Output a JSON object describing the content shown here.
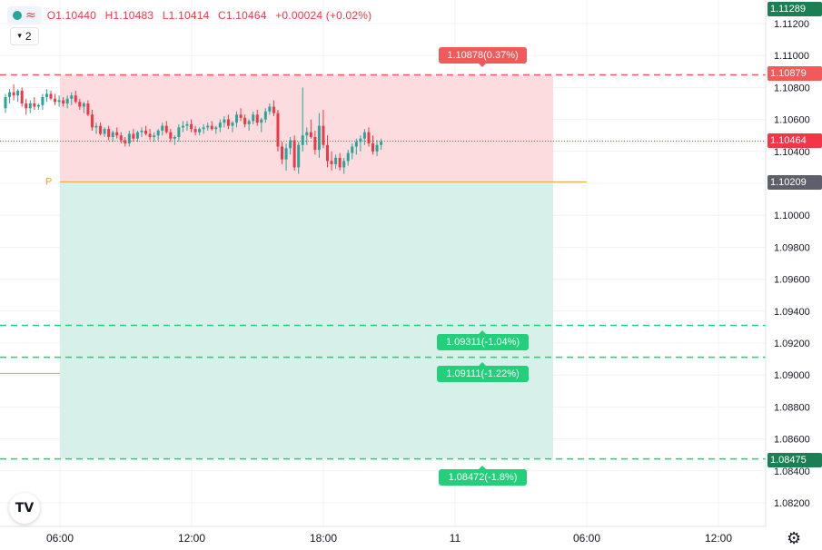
{
  "header": {
    "open": "O1.10440",
    "high": "H1.10483",
    "low": "L1.10414",
    "close": "C1.10464",
    "change": "+0.00024 (+0.02%)",
    "interval": "2"
  },
  "price_axis": {
    "ticks": [
      "1.11200",
      "1.11000",
      "1.10800",
      "1.10600",
      "1.10400",
      "1.10200",
      "1.10000",
      "1.09800",
      "1.09600",
      "1.09400",
      "1.09200",
      "1.09000",
      "1.08800",
      "1.08600",
      "1.08400",
      "1.08200"
    ]
  },
  "time_axis": {
    "ticks": [
      "06:00",
      "12:00",
      "18:00",
      "11",
      "06:00",
      "12:00"
    ]
  },
  "price_labels": {
    "top": "1.11289",
    "stop": "1.10879",
    "current": "1.10464",
    "pivot": "1.10209",
    "target3": "1.08475"
  },
  "position_labels": {
    "stop": "1.10878(0.37%)",
    "target1": "1.09311(-1.04%)",
    "target2": "1.09111(-1.22%)",
    "target3": "1.08472(-1.8%)"
  },
  "pivot_letter": "P",
  "colors": {
    "up": "#26a69a",
    "down": "#f23645",
    "stop_zone": "#fcdcdf",
    "target_zone": "#d7f0ea",
    "green_line": "#22d07a",
    "red_line": "#f05a5a",
    "pivot_line": "#f7a64a"
  },
  "chart_data": {
    "type": "candlestick",
    "x_ticks": [
      "06:00",
      "12:00",
      "18:00",
      "11",
      "06:00",
      "12:00"
    ],
    "y_range": [
      1.081,
      1.113
    ],
    "candles": [
      [
        1.1067,
        1.1076,
        1.1064,
        1.1074
      ],
      [
        1.1074,
        1.1079,
        1.107,
        1.1077
      ],
      [
        1.1077,
        1.1082,
        1.1072,
        1.1075
      ],
      [
        1.1075,
        1.1079,
        1.1071,
        1.1078
      ],
      [
        1.1078,
        1.108,
        1.1068,
        1.107
      ],
      [
        1.107,
        1.1073,
        1.1063,
        1.1067
      ],
      [
        1.1067,
        1.1072,
        1.1064,
        1.107
      ],
      [
        1.107,
        1.1074,
        1.1066,
        1.1068
      ],
      [
        1.1068,
        1.107,
        1.1066,
        1.1069
      ],
      [
        1.1069,
        1.1076,
        1.1066,
        1.1074
      ],
      [
        1.1074,
        1.1079,
        1.1071,
        1.1076
      ],
      [
        1.1076,
        1.1078,
        1.1072,
        1.1073
      ],
      [
        1.1073,
        1.1076,
        1.1069,
        1.1071
      ],
      [
        1.1071,
        1.1075,
        1.1068,
        1.1072
      ],
      [
        1.1072,
        1.1074,
        1.1068,
        1.107
      ],
      [
        1.107,
        1.1075,
        1.1067,
        1.1073
      ],
      [
        1.1073,
        1.1077,
        1.1069,
        1.1075
      ],
      [
        1.1075,
        1.1078,
        1.107,
        1.1071
      ],
      [
        1.1071,
        1.1073,
        1.1066,
        1.1068
      ],
      [
        1.1068,
        1.1071,
        1.1064,
        1.107
      ],
      [
        1.107,
        1.1072,
        1.1062,
        1.1063
      ],
      [
        1.1063,
        1.1066,
        1.1053,
        1.1055
      ],
      [
        1.1055,
        1.1058,
        1.1051,
        1.1056
      ],
      [
        1.1056,
        1.1058,
        1.105,
        1.1051
      ],
      [
        1.1051,
        1.1055,
        1.1049,
        1.1054
      ],
      [
        1.1054,
        1.1056,
        1.1047,
        1.1049
      ],
      [
        1.1049,
        1.1053,
        1.1046,
        1.1052
      ],
      [
        1.1052,
        1.1055,
        1.1048,
        1.105
      ],
      [
        1.105,
        1.1052,
        1.1045,
        1.1047
      ],
      [
        1.1047,
        1.1049,
        1.1043,
        1.1045
      ],
      [
        1.1045,
        1.1053,
        1.1043,
        1.1051
      ],
      [
        1.1051,
        1.1054,
        1.1046,
        1.1048
      ],
      [
        1.1048,
        1.1053,
        1.1046,
        1.1052
      ],
      [
        1.1052,
        1.1055,
        1.1049,
        1.1053
      ],
      [
        1.1053,
        1.1056,
        1.105,
        1.1051
      ],
      [
        1.1051,
        1.1054,
        1.1047,
        1.1049
      ],
      [
        1.1049,
        1.1052,
        1.1046,
        1.105
      ],
      [
        1.105,
        1.1054,
        1.1047,
        1.1053
      ],
      [
        1.1053,
        1.1058,
        1.105,
        1.1056
      ],
      [
        1.1056,
        1.1059,
        1.1051,
        1.1052
      ],
      [
        1.1052,
        1.1054,
        1.1046,
        1.1048
      ],
      [
        1.1048,
        1.105,
        1.1044,
        1.1049
      ],
      [
        1.1049,
        1.1057,
        1.1046,
        1.1055
      ],
      [
        1.1055,
        1.1059,
        1.1052,
        1.1056
      ],
      [
        1.1056,
        1.1059,
        1.1053,
        1.1057
      ],
      [
        1.1057,
        1.106,
        1.1052,
        1.1054
      ],
      [
        1.1054,
        1.1056,
        1.105,
        1.1052
      ],
      [
        1.1052,
        1.1055,
        1.105,
        1.1054
      ],
      [
        1.1054,
        1.1057,
        1.1051,
        1.1055
      ],
      [
        1.1055,
        1.1058,
        1.1053,
        1.1056
      ],
      [
        1.1056,
        1.1059,
        1.1053,
        1.1054
      ],
      [
        1.1054,
        1.1056,
        1.1051,
        1.1055
      ],
      [
        1.1055,
        1.106,
        1.1052,
        1.1058
      ],
      [
        1.1058,
        1.1062,
        1.1055,
        1.106
      ],
      [
        1.106,
        1.1063,
        1.1054,
        1.1056
      ],
      [
        1.1056,
        1.1059,
        1.1052,
        1.1058
      ],
      [
        1.1058,
        1.1065,
        1.1055,
        1.1063
      ],
      [
        1.1063,
        1.1067,
        1.1059,
        1.1061
      ],
      [
        1.1061,
        1.1063,
        1.1055,
        1.1057
      ],
      [
        1.1057,
        1.106,
        1.1053,
        1.1059
      ],
      [
        1.1059,
        1.1065,
        1.1057,
        1.1063
      ],
      [
        1.1063,
        1.1066,
        1.1056,
        1.1058
      ],
      [
        1.1058,
        1.1061,
        1.1052,
        1.106
      ],
      [
        1.106,
        1.1067,
        1.1058,
        1.1065
      ],
      [
        1.1065,
        1.107,
        1.1063,
        1.1068
      ],
      [
        1.1068,
        1.1072,
        1.1062,
        1.1064
      ],
      [
        1.1064,
        1.1066,
        1.104,
        1.1043
      ],
      [
        1.1043,
        1.1046,
        1.1032,
        1.1035
      ],
      [
        1.1035,
        1.1045,
        1.1028,
        1.1042
      ],
      [
        1.1042,
        1.1049,
        1.1038,
        1.1047
      ],
      [
        1.1047,
        1.105,
        1.1028,
        1.103
      ],
      [
        1.103,
        1.1046,
        1.1026,
        1.1044
      ],
      [
        1.1044,
        1.108,
        1.104,
        1.105
      ],
      [
        1.105,
        1.1055,
        1.1044,
        1.1052
      ],
      [
        1.1052,
        1.106,
        1.1048,
        1.1049
      ],
      [
        1.1049,
        1.1053,
        1.1038,
        1.1041
      ],
      [
        1.1041,
        1.1064,
        1.1036,
        1.1056
      ],
      [
        1.1056,
        1.1066,
        1.1042,
        1.1044
      ],
      [
        1.1044,
        1.105,
        1.103,
        1.1034
      ],
      [
        1.1034,
        1.104,
        1.1028,
        1.1032
      ],
      [
        1.1032,
        1.1038,
        1.1029,
        1.1036
      ],
      [
        1.1036,
        1.1039,
        1.1028,
        1.103
      ],
      [
        1.103,
        1.1036,
        1.1026,
        1.1034
      ],
      [
        1.1034,
        1.1041,
        1.1031,
        1.1039
      ],
      [
        1.1039,
        1.1045,
        1.1035,
        1.1043
      ],
      [
        1.1043,
        1.1048,
        1.1038,
        1.1046
      ],
      [
        1.1046,
        1.105,
        1.104,
        1.1048
      ],
      [
        1.1048,
        1.1054,
        1.1044,
        1.1052
      ],
      [
        1.1052,
        1.1055,
        1.1043,
        1.1045
      ],
      [
        1.1045,
        1.105,
        1.1038,
        1.104
      ],
      [
        1.104,
        1.1047,
        1.1037,
        1.1044
      ],
      [
        1.1044,
        1.1048,
        1.1041,
        1.1046
      ]
    ]
  }
}
